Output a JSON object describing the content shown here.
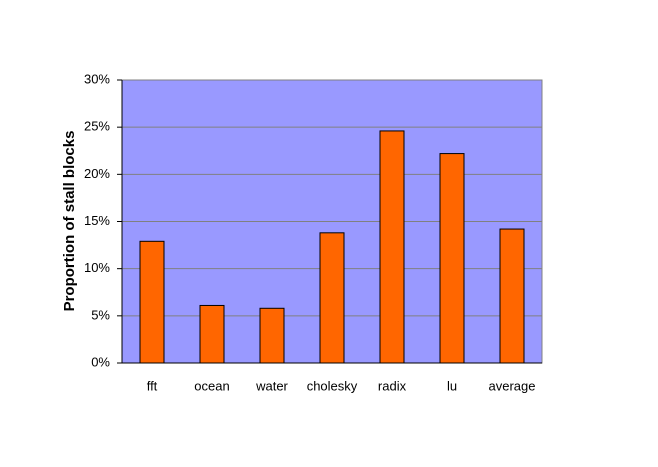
{
  "chart_data": {
    "type": "bar",
    "y_label": "Proportion of stall blocks",
    "categories": [
      "fft",
      "ocean",
      "water",
      "cholesky",
      "radix",
      "lu",
      "average"
    ],
    "values": [
      12.9,
      6.1,
      5.8,
      13.8,
      24.6,
      22.2,
      14.2
    ],
    "color": "#ff6600",
    "plot_background": "#9999ff",
    "ylim": [
      0,
      30
    ],
    "yticks": [
      {
        "value": 0,
        "label": "0%"
      },
      {
        "value": 5,
        "label": "5%"
      },
      {
        "value": 10,
        "label": "10%"
      },
      {
        "value": 15,
        "label": "15%"
      },
      {
        "value": 20,
        "label": "20%"
      },
      {
        "value": 25,
        "label": "25%"
      },
      {
        "value": 30,
        "label": "30%"
      }
    ],
    "grid": true
  }
}
